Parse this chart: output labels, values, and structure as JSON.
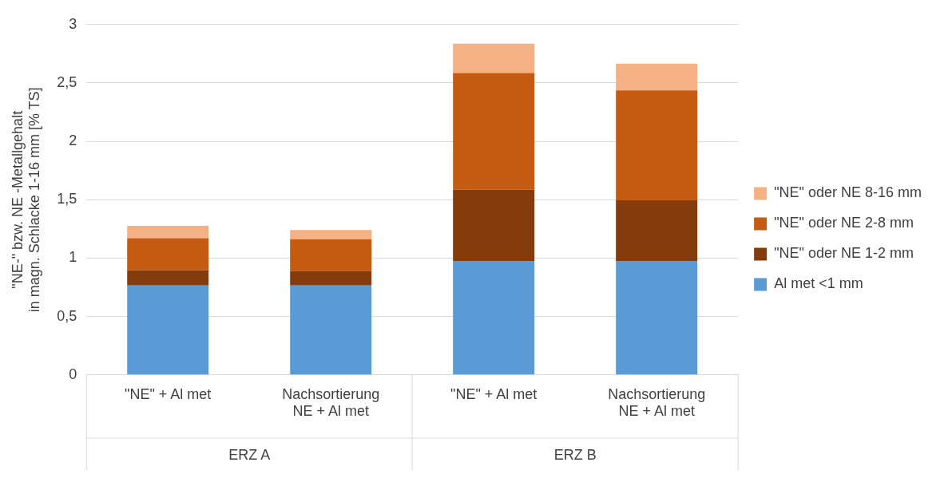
{
  "chart_data": {
    "type": "bar",
    "stacked": true,
    "ylabel": "\"NE-\" bzw. NE -Metallgehalt\nin magn. Schlacke 1-16 mm [% TS]",
    "categories": [
      "\"NE\" + Al met",
      "Nachsortierung\nNE + Al met",
      "\"NE\" + Al met",
      "Nachsortierung\nNE + Al met"
    ],
    "annotations": [
      "ERZ A",
      "ERZ B"
    ],
    "series": [
      {
        "name": "Al met <1 mm",
        "color": "#5b9bd5",
        "values": [
          0.765,
          0.765,
          0.976,
          0.976
        ]
      },
      {
        "name": "\"NE\" oder NE 1-2 mm",
        "color": "#843c0c",
        "values": [
          0.13,
          0.125,
          0.61,
          0.52
        ]
      },
      {
        "name": "\"NE\" oder NE 2-8 mm",
        "color": "#c55a11",
        "values": [
          0.276,
          0.27,
          1.0,
          0.94
        ]
      },
      {
        "name": "\"NE\" oder NE 8-16 mm",
        "color": "#f4b183",
        "values": [
          0.105,
          0.08,
          0.25,
          0.23
        ]
      }
    ],
    "ylim": [
      0,
      3
    ],
    "yticks": [
      0,
      {
        "value": 0.5,
        "label": "0,5"
      },
      1,
      {
        "value": 1.5,
        "label": "1,5"
      },
      2,
      {
        "value": 2.5,
        "label": "2,5"
      },
      3
    ],
    "grid": "y",
    "legend": "right"
  }
}
